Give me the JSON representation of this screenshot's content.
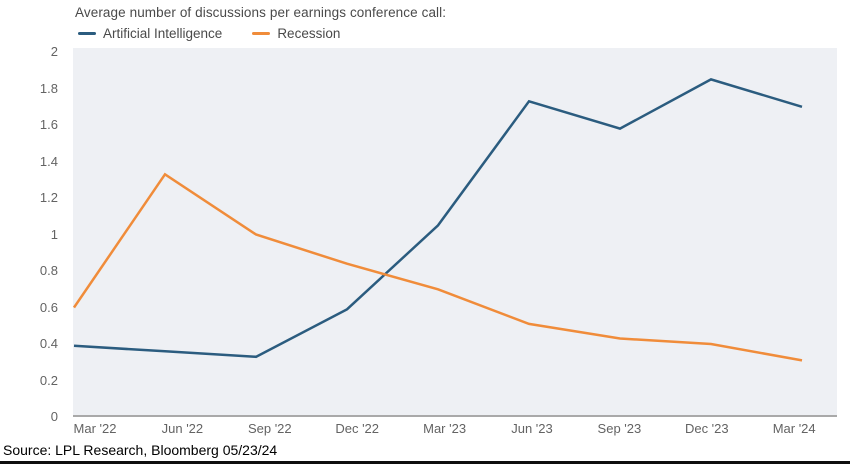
{
  "title": "Average number of discussions per earnings conference call:",
  "source": "Source: LPL Research, Bloomberg 05/23/24",
  "colors": {
    "ai_line": "#2b5c7f",
    "recession_line": "#f08c3a",
    "plot_background": "#eef0f4",
    "axis_line": "#a9a9a9",
    "tick_text": "#636363",
    "title_text": "#4a4a4a",
    "source_text": "#000000",
    "bottom_rule": "#0e0e0e"
  },
  "legend": {
    "items": [
      {
        "label": "Artificial Intelligence",
        "color": "#2b5c7f"
      },
      {
        "label": "Recession",
        "color": "#f08c3a"
      }
    ],
    "position": "top-left"
  },
  "chart_data": {
    "type": "line",
    "categories": [
      "Mar '22",
      "Jun '22",
      "Sep '22",
      "Dec '22",
      "Mar '23",
      "Jun '23",
      "Sep '23",
      "Dec '23",
      "Mar '24"
    ],
    "series": [
      {
        "name": "Artificial Intelligence",
        "color": "#2b5c7f",
        "values": [
          0.39,
          0.36,
          0.33,
          0.59,
          1.05,
          1.73,
          1.58,
          1.85,
          1.7
        ]
      },
      {
        "name": "Recession",
        "color": "#f08c3a",
        "values": [
          0.6,
          1.33,
          1.0,
          0.84,
          0.7,
          0.51,
          0.43,
          0.4,
          0.31
        ]
      }
    ],
    "title": "Average number of discussions per earnings conference call:",
    "xlabel": "",
    "ylabel": "",
    "ylim": [
      0,
      2
    ],
    "yticks": [
      0,
      0.2,
      0.4,
      0.6,
      0.8,
      1,
      1.2,
      1.4,
      1.6,
      1.8,
      2
    ],
    "ytick_labels": [
      "0",
      "0.2",
      "0.4",
      "0.6",
      "0.8",
      "1",
      "1.2",
      "1.4",
      "1.6",
      "1.8",
      "2"
    ],
    "grid": false,
    "legend_position": "top-left"
  }
}
